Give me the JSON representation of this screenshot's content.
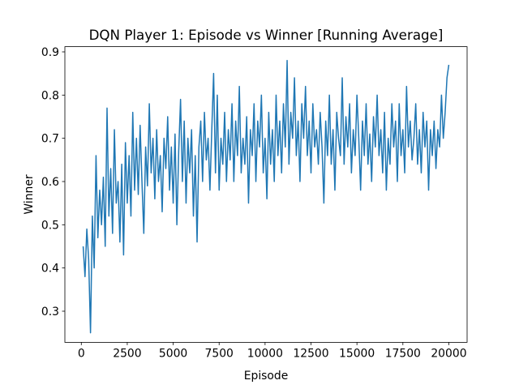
{
  "chart_data": {
    "type": "line",
    "title": "DQN Player 1: Episode vs Winner [Running Average]",
    "xlabel": "Episode",
    "ylabel": "Winner",
    "xlim": [
      -895,
      20995
    ],
    "ylim": [
      0.228,
      0.912
    ],
    "xticks": [
      0,
      2500,
      5000,
      7500,
      10000,
      12500,
      15000,
      17500,
      20000
    ],
    "yticks": [
      0.3,
      0.4,
      0.5,
      0.6,
      0.7,
      0.8,
      0.9
    ],
    "grid": false,
    "x": [
      100,
      200,
      300,
      400,
      500,
      600,
      700,
      800,
      900,
      1000,
      1100,
      1200,
      1300,
      1400,
      1500,
      1600,
      1700,
      1800,
      1900,
      2000,
      2100,
      2200,
      2300,
      2400,
      2500,
      2600,
      2700,
      2800,
      2900,
      3000,
      3100,
      3200,
      3300,
      3400,
      3500,
      3600,
      3700,
      3800,
      3900,
      4000,
      4100,
      4200,
      4300,
      4400,
      4500,
      4600,
      4700,
      4800,
      4900,
      5000,
      5100,
      5200,
      5300,
      5400,
      5500,
      5600,
      5700,
      5800,
      5900,
      6000,
      6100,
      6200,
      6300,
      6400,
      6500,
      6600,
      6700,
      6800,
      6900,
      7000,
      7100,
      7200,
      7300,
      7400,
      7500,
      7600,
      7700,
      7800,
      7900,
      8000,
      8100,
      8200,
      8300,
      8400,
      8500,
      8600,
      8700,
      8800,
      8900,
      9000,
      9100,
      9200,
      9300,
      9400,
      9500,
      9600,
      9700,
      9800,
      9900,
      10000,
      10100,
      10200,
      10300,
      10400,
      10500,
      10600,
      10700,
      10800,
      10900,
      11000,
      11100,
      11200,
      11300,
      11400,
      11500,
      11600,
      11700,
      11800,
      11900,
      12000,
      12100,
      12200,
      12300,
      12400,
      12500,
      12600,
      12700,
      12800,
      12900,
      13000,
      13100,
      13200,
      13300,
      13400,
      13500,
      13600,
      13700,
      13800,
      13900,
      14000,
      14100,
      14200,
      14300,
      14400,
      14500,
      14600,
      14700,
      14800,
      14900,
      15000,
      15100,
      15200,
      15300,
      15400,
      15500,
      15600,
      15700,
      15800,
      15900,
      16000,
      16100,
      16200,
      16300,
      16400,
      16500,
      16600,
      16700,
      16800,
      16900,
      17000,
      17100,
      17200,
      17300,
      17400,
      17500,
      17600,
      17700,
      17800,
      17900,
      18000,
      18100,
      18200,
      18300,
      18400,
      18500,
      18600,
      18700,
      18800,
      18900,
      19000,
      19100,
      19200,
      19300,
      19400,
      19500,
      19600,
      19700,
      19800,
      19900,
      20000
    ],
    "series": [
      {
        "color": "#1f77b4",
        "values": [
          0.45,
          0.38,
          0.49,
          0.42,
          0.25,
          0.52,
          0.4,
          0.66,
          0.47,
          0.58,
          0.5,
          0.61,
          0.45,
          0.77,
          0.52,
          0.63,
          0.48,
          0.72,
          0.55,
          0.6,
          0.46,
          0.64,
          0.43,
          0.69,
          0.55,
          0.66,
          0.52,
          0.76,
          0.58,
          0.7,
          0.57,
          0.73,
          0.6,
          0.48,
          0.68,
          0.59,
          0.78,
          0.62,
          0.7,
          0.56,
          0.72,
          0.6,
          0.66,
          0.53,
          0.7,
          0.63,
          0.75,
          0.58,
          0.68,
          0.55,
          0.71,
          0.5,
          0.67,
          0.79,
          0.6,
          0.74,
          0.55,
          0.7,
          0.62,
          0.72,
          0.52,
          0.66,
          0.46,
          0.68,
          0.74,
          0.6,
          0.76,
          0.65,
          0.7,
          0.58,
          0.72,
          0.85,
          0.62,
          0.8,
          0.58,
          0.7,
          0.64,
          0.76,
          0.6,
          0.72,
          0.65,
          0.78,
          0.6,
          0.74,
          0.66,
          0.82,
          0.62,
          0.7,
          0.64,
          0.75,
          0.55,
          0.72,
          0.66,
          0.78,
          0.6,
          0.74,
          0.68,
          0.8,
          0.62,
          0.7,
          0.56,
          0.76,
          0.64,
          0.72,
          0.6,
          0.8,
          0.66,
          0.74,
          0.62,
          0.78,
          0.68,
          0.88,
          0.64,
          0.76,
          0.7,
          0.84,
          0.66,
          0.74,
          0.6,
          0.78,
          0.7,
          0.82,
          0.66,
          0.74,
          0.62,
          0.78,
          0.68,
          0.72,
          0.64,
          0.76,
          0.68,
          0.55,
          0.74,
          0.66,
          0.8,
          0.64,
          0.72,
          0.58,
          0.76,
          0.7,
          0.66,
          0.84,
          0.64,
          0.75,
          0.68,
          0.78,
          0.62,
          0.72,
          0.66,
          0.8,
          0.7,
          0.58,
          0.74,
          0.66,
          0.78,
          0.64,
          0.71,
          0.6,
          0.75,
          0.68,
          0.8,
          0.66,
          0.72,
          0.62,
          0.76,
          0.58,
          0.7,
          0.64,
          0.78,
          0.68,
          0.74,
          0.6,
          0.78,
          0.66,
          0.72,
          0.62,
          0.82,
          0.68,
          0.74,
          0.65,
          0.7,
          0.78,
          0.64,
          0.72,
          0.62,
          0.76,
          0.68,
          0.74,
          0.58,
          0.72,
          0.66,
          0.74,
          0.63,
          0.72,
          0.68,
          0.8,
          0.7,
          0.76,
          0.84,
          0.87
        ]
      }
    ]
  }
}
